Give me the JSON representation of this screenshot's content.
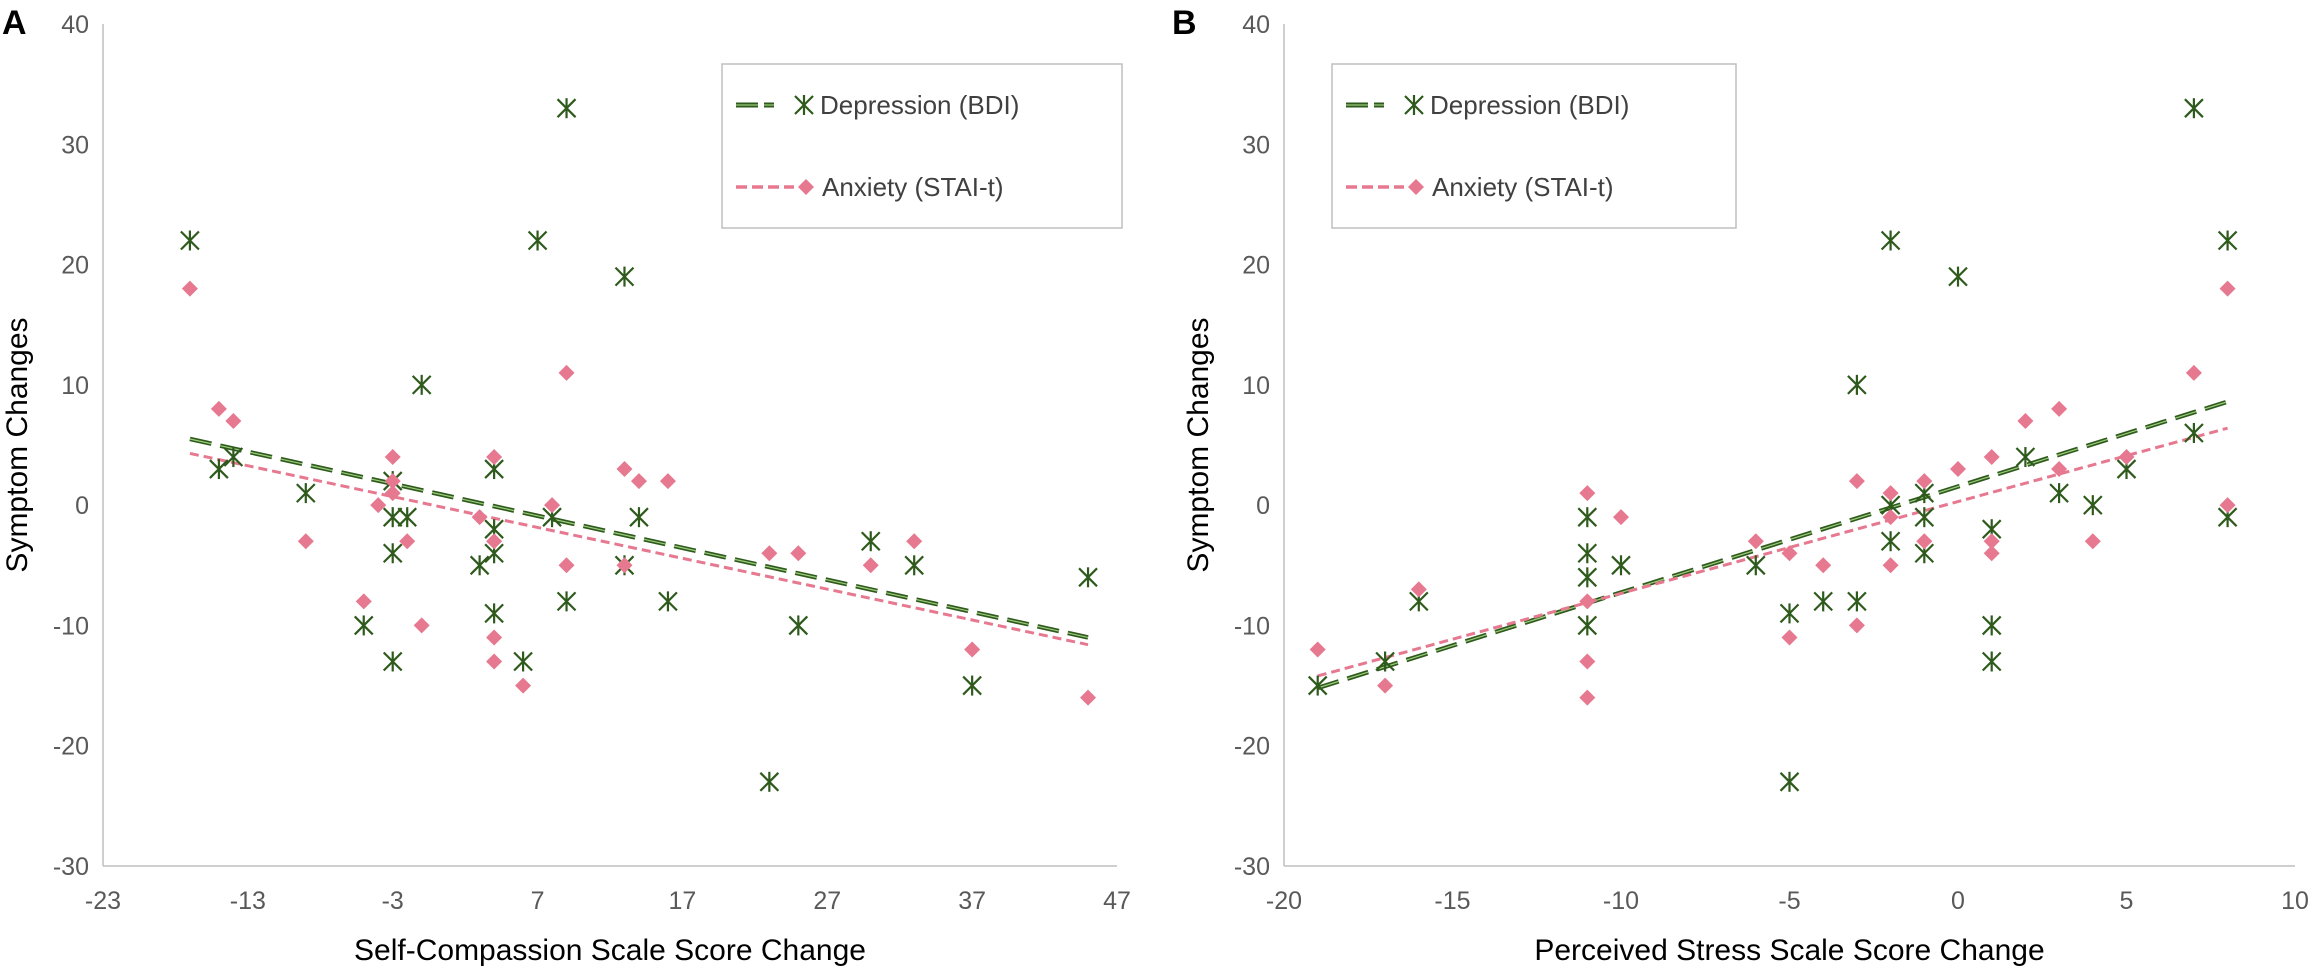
{
  "chart_data": [
    {
      "panel_label": "A",
      "type": "scatter",
      "xlabel": "Self-Compassion Scale Score Change",
      "ylabel": "Symptom Changes",
      "xlim": [
        -23,
        47
      ],
      "ylim": [
        -30,
        40
      ],
      "x_ticks": [
        -23,
        -13,
        -3,
        7,
        17,
        27,
        37,
        47
      ],
      "y_ticks": [
        -30,
        -20,
        -10,
        0,
        10,
        20,
        30,
        40
      ],
      "legend_position": "top-right",
      "series": [
        {
          "name": "Depression (BDI)",
          "marker": "asterisk",
          "color": "#2e5a1c",
          "trend_color": "#2e5a1c",
          "trendline": {
            "start": [
              -17,
              5.5
            ],
            "end": [
              45,
              -11
            ]
          },
          "points": [
            [
              -17,
              22
            ],
            [
              -15,
              3
            ],
            [
              -14,
              4
            ],
            [
              -9,
              1
            ],
            [
              -5,
              -10
            ],
            [
              -3,
              -13
            ],
            [
              -3,
              -4
            ],
            [
              -3,
              -1
            ],
            [
              -3,
              2
            ],
            [
              -2,
              -1
            ],
            [
              -1,
              10
            ],
            [
              3,
              -5
            ],
            [
              4,
              -4
            ],
            [
              4,
              -2
            ],
            [
              4,
              3
            ],
            [
              4,
              -9
            ],
            [
              6,
              -13
            ],
            [
              7,
              22
            ],
            [
              8,
              -1
            ],
            [
              9,
              33
            ],
            [
              9,
              -8
            ],
            [
              13,
              19
            ],
            [
              13,
              -5
            ],
            [
              14,
              -1
            ],
            [
              16,
              -8
            ],
            [
              23,
              -23
            ],
            [
              25,
              -10
            ],
            [
              30,
              -3
            ],
            [
              33,
              -5
            ],
            [
              37,
              -15
            ],
            [
              45,
              -6
            ]
          ]
        },
        {
          "name": "Anxiety (STAI-t)",
          "marker": "diamond",
          "color": "#e6788f",
          "trend_color": "#e6788f",
          "trendline": {
            "start": [
              -17,
              4.3
            ],
            "end": [
              45,
              -11.6
            ]
          },
          "points": [
            [
              -17,
              18
            ],
            [
              -15,
              8
            ],
            [
              -14,
              7
            ],
            [
              -9,
              -3
            ],
            [
              -5,
              -8
            ],
            [
              -4,
              0
            ],
            [
              -3,
              4
            ],
            [
              -3,
              2
            ],
            [
              -3,
              1
            ],
            [
              -2,
              -3
            ],
            [
              -1,
              -10
            ],
            [
              3,
              -1
            ],
            [
              4,
              4
            ],
            [
              4,
              -3
            ],
            [
              4,
              -11
            ],
            [
              4,
              -13
            ],
            [
              6,
              -15
            ],
            [
              8,
              0
            ],
            [
              9,
              11
            ],
            [
              9,
              -5
            ],
            [
              13,
              3
            ],
            [
              13,
              -5
            ],
            [
              14,
              2
            ],
            [
              16,
              2
            ],
            [
              23,
              -4
            ],
            [
              25,
              -4
            ],
            [
              30,
              -5
            ],
            [
              33,
              -3
            ],
            [
              37,
              -12
            ],
            [
              45,
              -16
            ]
          ]
        }
      ]
    },
    {
      "panel_label": "B",
      "type": "scatter",
      "xlabel": "Perceived Stress Scale Score Change",
      "ylabel": "Symptom Changes",
      "xlim": [
        -20,
        10
      ],
      "ylim": [
        -30,
        40
      ],
      "x_ticks": [
        -20,
        -15,
        -10,
        -5,
        0,
        5,
        10
      ],
      "y_ticks": [
        -30,
        -20,
        -10,
        0,
        10,
        20,
        30,
        40
      ],
      "legend_position": "top-left",
      "series": [
        {
          "name": "Depression (BDI)",
          "marker": "asterisk",
          "color": "#2e5a1c",
          "trend_color": "#2e5a1c",
          "trendline": {
            "start": [
              -19,
              -15.2
            ],
            "end": [
              8,
              8.6
            ]
          },
          "points": [
            [
              -19,
              -15
            ],
            [
              -17,
              -13
            ],
            [
              -16,
              -8
            ],
            [
              -11,
              -1
            ],
            [
              -11,
              -4
            ],
            [
              -11,
              -6
            ],
            [
              -11,
              -10
            ],
            [
              -10,
              -5
            ],
            [
              -6,
              -5
            ],
            [
              -5,
              -23
            ],
            [
              -5,
              -9
            ],
            [
              -4,
              -8
            ],
            [
              -3,
              10
            ],
            [
              -3,
              -8
            ],
            [
              -2,
              22
            ],
            [
              -2,
              -3
            ],
            [
              -2,
              0
            ],
            [
              -1,
              1
            ],
            [
              -1,
              -4
            ],
            [
              -1,
              -1
            ],
            [
              0,
              19
            ],
            [
              1,
              -2
            ],
            [
              1,
              -10
            ],
            [
              1,
              -13
            ],
            [
              2,
              4
            ],
            [
              3,
              1
            ],
            [
              4,
              0
            ],
            [
              5,
              3
            ],
            [
              7,
              33
            ],
            [
              7,
              6
            ],
            [
              8,
              22
            ],
            [
              8,
              -1
            ]
          ]
        },
        {
          "name": "Anxiety (STAI-t)",
          "marker": "diamond",
          "color": "#e6788f",
          "trend_color": "#e6788f",
          "trendline": {
            "start": [
              -19,
              -14.2
            ],
            "end": [
              8,
              6.4
            ]
          },
          "points": [
            [
              -19,
              -12
            ],
            [
              -17,
              -15
            ],
            [
              -16,
              -7
            ],
            [
              -11,
              1
            ],
            [
              -11,
              -8
            ],
            [
              -11,
              -13
            ],
            [
              -11,
              -16
            ],
            [
              -10,
              -1
            ],
            [
              -6,
              -3
            ],
            [
              -5,
              -4
            ],
            [
              -5,
              -11
            ],
            [
              -4,
              -5
            ],
            [
              -3,
              2
            ],
            [
              -3,
              -10
            ],
            [
              -2,
              1
            ],
            [
              -2,
              -1
            ],
            [
              -2,
              -5
            ],
            [
              -1,
              2
            ],
            [
              -1,
              -3
            ],
            [
              0,
              3
            ],
            [
              1,
              4
            ],
            [
              1,
              -3
            ],
            [
              1,
              -4
            ],
            [
              2,
              7
            ],
            [
              3,
              8
            ],
            [
              3,
              3
            ],
            [
              4,
              -3
            ],
            [
              5,
              4
            ],
            [
              7,
              11
            ],
            [
              8,
              18
            ],
            [
              8,
              0
            ]
          ]
        }
      ]
    }
  ]
}
